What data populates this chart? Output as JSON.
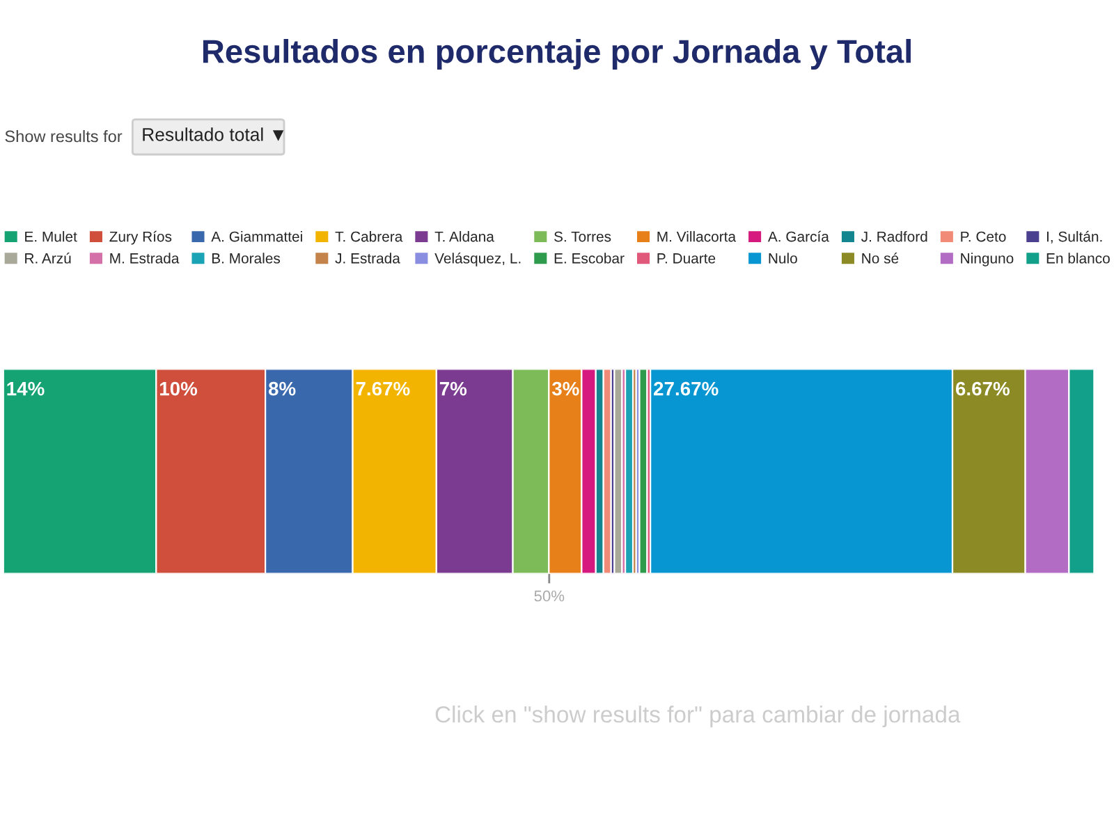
{
  "chart_data": {
    "type": "bar",
    "orientation": "horizontal",
    "stacked": true,
    "title": "Resultados en porcentaje por Jornada y Total",
    "categories": [
      null
    ],
    "xlim": [
      0,
      100
    ],
    "xticks": [
      {
        "value": 50,
        "label": "50%"
      }
    ],
    "grid": false,
    "legend": "top",
    "annotations": [
      "Show results for",
      "Resultado total ▼",
      "Click en \"show results for\" para cambiar de jornada"
    ],
    "series": [
      {
        "name": "E. Mulet",
        "color": "#16a374",
        "values": [
          14
        ],
        "value_labels": [
          "14%"
        ]
      },
      {
        "name": "Zury Ríos",
        "color": "#cf4f3c",
        "values": [
          10
        ],
        "value_labels": [
          "10%"
        ]
      },
      {
        "name": "A. Giammattei",
        "color": "#3a68ad",
        "values": [
          8
        ],
        "value_labels": [
          "8%"
        ]
      },
      {
        "name": "T. Cabrera",
        "color": "#f2b400",
        "values": [
          7.67
        ],
        "value_labels": [
          "7.67%"
        ]
      },
      {
        "name": "T. Aldana",
        "color": "#7b3b91",
        "values": [
          7
        ],
        "value_labels": [
          "7%"
        ]
      },
      {
        "name": "S. Torres",
        "color": "#7dbb58",
        "values": [
          3.3
        ],
        "value_labels": [
          null
        ]
      },
      {
        "name": "M. Villacorta",
        "color": "#e8801a",
        "values": [
          3
        ],
        "value_labels": [
          "3%"
        ]
      },
      {
        "name": "A. García",
        "color": "#d6197e",
        "values": [
          1.3
        ],
        "value_labels": [
          null
        ]
      },
      {
        "name": "J. Radford",
        "color": "#12858f",
        "values": [
          0.7
        ],
        "value_labels": [
          null
        ]
      },
      {
        "name": "P. Ceto",
        "color": "#f28a78",
        "values": [
          0.7
        ],
        "value_labels": [
          null
        ]
      },
      {
        "name": "I, Sultán.",
        "color": "#4b3f8f",
        "values": [
          0.3
        ],
        "value_labels": [
          null
        ]
      },
      {
        "name": "R. Arzú",
        "color": "#a9a99a",
        "values": [
          0.7
        ],
        "value_labels": [
          null
        ]
      },
      {
        "name": "M. Estrada",
        "color": "#d471a8",
        "values": [
          0.3
        ],
        "value_labels": [
          null
        ]
      },
      {
        "name": "B. Morales",
        "color": "#1aa2b5",
        "values": [
          0.7
        ],
        "value_labels": [
          null
        ]
      },
      {
        "name": "J. Estrada",
        "color": "#c3834a",
        "values": [
          0.3
        ],
        "value_labels": [
          null
        ]
      },
      {
        "name": "Velásquez, L.",
        "color": "#8a8ee0",
        "values": [
          0.3
        ],
        "value_labels": [
          null
        ]
      },
      {
        "name": "E. Escobar",
        "color": "#2e9a4b",
        "values": [
          0.7
        ],
        "value_labels": [
          null
        ]
      },
      {
        "name": "P. Duarte",
        "color": "#e0587a",
        "values": [
          0.3
        ],
        "value_labels": [
          null
        ]
      },
      {
        "name": "Nulo",
        "color": "#0896d2",
        "values": [
          27.67
        ],
        "value_labels": [
          "27.67%"
        ]
      },
      {
        "name": "No sé",
        "color": "#8c8a24",
        "values": [
          6.67
        ],
        "value_labels": [
          "6.67%"
        ]
      },
      {
        "name": "Ninguno",
        "color": "#b36cc4",
        "values": [
          4
        ],
        "value_labels": [
          null
        ]
      },
      {
        "name": "En blanco",
        "color": "#12a08a",
        "values": [
          2.3
        ],
        "value_labels": [
          null
        ]
      }
    ]
  }
}
